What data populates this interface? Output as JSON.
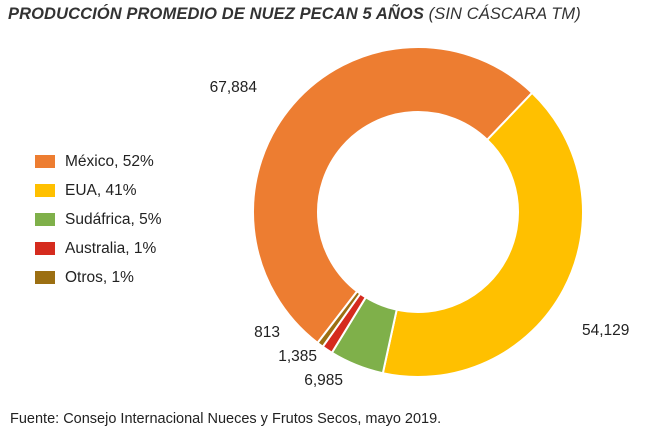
{
  "title": {
    "bold": "PRODUCCIÓN PROMEDIO DE NUEZ PECAN 5 AÑOS",
    "normal": " (SIN CÁSCARA TM)"
  },
  "source": "Fuente: Consejo Internacional Nueces y Frutos Secos, mayo 2019.",
  "legend": [
    {
      "label": "México, 52%",
      "color": "#ED7D31"
    },
    {
      "label": "EUA, 41%",
      "color": "#FFC000"
    },
    {
      "label": "Sudáfrica, 5%",
      "color": "#7FB04A"
    },
    {
      "label": "Australia, 1%",
      "color": "#D52B1E"
    },
    {
      "label": "Otros, 1%",
      "color": "#9C6F12"
    }
  ],
  "chart_data": {
    "type": "pie",
    "variant": "donut",
    "title": "PRODUCCIÓN PROMEDIO DE NUEZ PECAN 5 AÑOS (SIN CÁSCARA TM)",
    "categories": [
      "México",
      "EUA",
      "Sudáfrica",
      "Australia",
      "Otros"
    ],
    "values": [
      67884,
      54129,
      6985,
      1385,
      813
    ],
    "percent_labels": [
      "52%",
      "41%",
      "5%",
      "1%",
      "1%"
    ],
    "value_labels": [
      "67,884",
      "54,129",
      "6,985",
      "1,385",
      "813"
    ],
    "colors": [
      "#ED7D31",
      "#FFC000",
      "#7FB04A",
      "#D52B1E",
      "#9C6F12"
    ],
    "legend_position": "left"
  }
}
